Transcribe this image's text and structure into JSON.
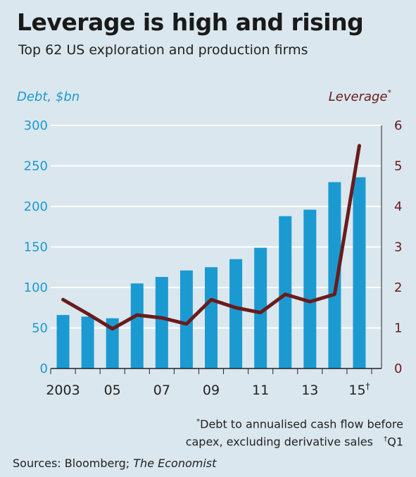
{
  "title": "Leverage is high and rising",
  "subtitle": "Top 62 US exploration and production firms",
  "colors": {
    "background": "#dae7ee",
    "bar": "#1b9ad2",
    "line": "#6a1b1b",
    "grid": "#ffffff"
  },
  "footnote": {
    "marker": "*",
    "line1": "Debt to annualised cash flow before",
    "line2": "capex, excluding derivative sales",
    "dagger_marker": "†",
    "dagger_text": "Q1"
  },
  "source": {
    "prefix": "Sources: Bloomberg; ",
    "italic": "The Economist"
  },
  "chart_data": {
    "type": "bar",
    "title": "Leverage is high and rising",
    "subtitle": "Top 62 US exploration and production firms",
    "categories": [
      "2003",
      "2004",
      "2005",
      "2006",
      "2007",
      "2008",
      "2009",
      "2010",
      "2011",
      "2012",
      "2013",
      "2014",
      "2015"
    ],
    "x_tick_labels": [
      "2003",
      "",
      "05",
      "",
      "07",
      "",
      "09",
      "",
      "11",
      "",
      "13",
      "",
      "15"
    ],
    "x_tick_suffix_last": "†",
    "series": [
      {
        "name": "Debt, $bn",
        "type": "bar",
        "axis": "left",
        "values": [
          66,
          64,
          62,
          105,
          113,
          121,
          125,
          135,
          149,
          188,
          196,
          230,
          236
        ]
      },
      {
        "name": "Leverage",
        "type": "line",
        "axis": "right",
        "values": [
          1.7,
          1.35,
          0.98,
          1.32,
          1.25,
          1.1,
          1.7,
          1.5,
          1.38,
          1.83,
          1.65,
          1.83,
          5.5
        ]
      }
    ],
    "y_left": {
      "label": "Debt, $bn",
      "ylim": [
        0,
        300
      ],
      "ticks": [
        "0",
        "50",
        "100",
        "150",
        "200",
        "250",
        "300"
      ]
    },
    "y_right": {
      "label": "Leverage",
      "label_marker": "*",
      "ylim": [
        0,
        6
      ],
      "ticks": [
        "0",
        "1",
        "2",
        "3",
        "4",
        "5",
        "6"
      ]
    },
    "grid": true
  }
}
